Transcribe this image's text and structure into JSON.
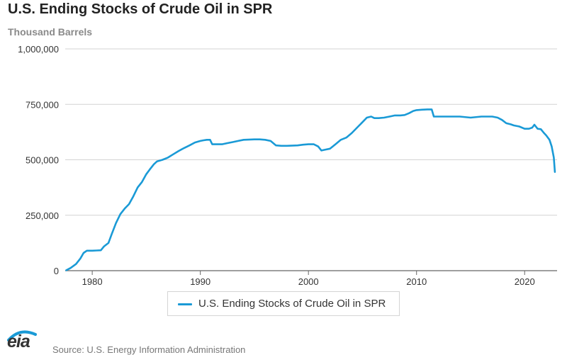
{
  "chart_data": {
    "type": "line",
    "title": "U.S. Ending Stocks of Crude Oil in SPR",
    "ylabel": "Thousand Barrels",
    "xlabel": "",
    "xlim": [
      1977.5,
      2023.0
    ],
    "ylim": [
      0,
      1000000
    ],
    "x_ticks": [
      1980,
      1990,
      2000,
      2010,
      2020
    ],
    "x_tick_labels": [
      "1980",
      "1990",
      "2000",
      "2010",
      "2020"
    ],
    "y_ticks": [
      0,
      250000,
      500000,
      750000,
      1000000
    ],
    "y_tick_labels": [
      "0",
      "250,000",
      "500,000",
      "750,000",
      "1,000,000"
    ],
    "grid": true,
    "legend_position": "bottom-center",
    "series": [
      {
        "name": "U.S. Ending Stocks of Crude Oil in SPR",
        "color": "#1a9ad6",
        "x": [
          1977.6,
          1978.0,
          1978.5,
          1978.9,
          1979.2,
          1979.5,
          1980.0,
          1980.4,
          1980.8,
          1981.1,
          1981.5,
          1981.8,
          1982.2,
          1982.6,
          1983.0,
          1983.4,
          1983.8,
          1984.2,
          1984.6,
          1985.0,
          1985.3,
          1985.7,
          1986.0,
          1986.5,
          1987.0,
          1987.5,
          1988.0,
          1988.5,
          1989.0,
          1989.5,
          1990.0,
          1990.3,
          1990.6,
          1990.9,
          1991.1,
          1991.5,
          1992.0,
          1992.5,
          1993.0,
          1993.5,
          1994.0,
          1995.0,
          1995.5,
          1996.0,
          1996.5,
          1997.0,
          1997.5,
          1998.0,
          1999.0,
          1999.5,
          2000.0,
          2000.5,
          2000.9,
          2001.2,
          2001.5,
          2002.0,
          2002.5,
          2003.0,
          2003.5,
          2004.0,
          2004.5,
          2005.0,
          2005.4,
          2005.8,
          2006.1,
          2006.5,
          2007.0,
          2007.5,
          2008.0,
          2008.5,
          2008.9,
          2009.3,
          2009.7,
          2010.0,
          2010.5,
          2011.0,
          2011.4,
          2011.6,
          2012.0,
          2013.0,
          2014.0,
          2015.0,
          2016.0,
          2017.0,
          2017.5,
          2017.9,
          2018.3,
          2018.7,
          2019.0,
          2019.5,
          2020.0,
          2020.4,
          2020.7,
          2020.9,
          2021.2,
          2021.5,
          2021.8,
          2022.0,
          2022.3,
          2022.5,
          2022.7,
          2022.8
        ],
        "y": [
          2000,
          12000,
          30000,
          55000,
          80000,
          90000,
          90000,
          91000,
          92000,
          110000,
          125000,
          165000,
          215000,
          255000,
          280000,
          300000,
          335000,
          375000,
          400000,
          435000,
          455000,
          480000,
          493000,
          500000,
          510000,
          525000,
          540000,
          553000,
          565000,
          578000,
          585000,
          588000,
          590000,
          590000,
          570000,
          570000,
          570000,
          575000,
          580000,
          585000,
          590000,
          592000,
          592000,
          590000,
          585000,
          565000,
          563000,
          563000,
          565000,
          568000,
          570000,
          570000,
          560000,
          542000,
          545000,
          550000,
          570000,
          590000,
          600000,
          620000,
          645000,
          670000,
          690000,
          695000,
          688000,
          688000,
          690000,
          695000,
          700000,
          700000,
          702000,
          710000,
          720000,
          724000,
          726000,
          727000,
          727000,
          695000,
          695000,
          695000,
          695000,
          690000,
          695000,
          695000,
          690000,
          680000,
          665000,
          660000,
          655000,
          650000,
          640000,
          640000,
          645000,
          658000,
          640000,
          638000,
          620000,
          610000,
          590000,
          560000,
          510000,
          445000
        ]
      }
    ]
  },
  "legend": {
    "label": "U.S. Ending Stocks of Crude Oil in SPR"
  },
  "footer": {
    "logo_text": "eia",
    "source": "Source: U.S. Energy Information Administration"
  }
}
